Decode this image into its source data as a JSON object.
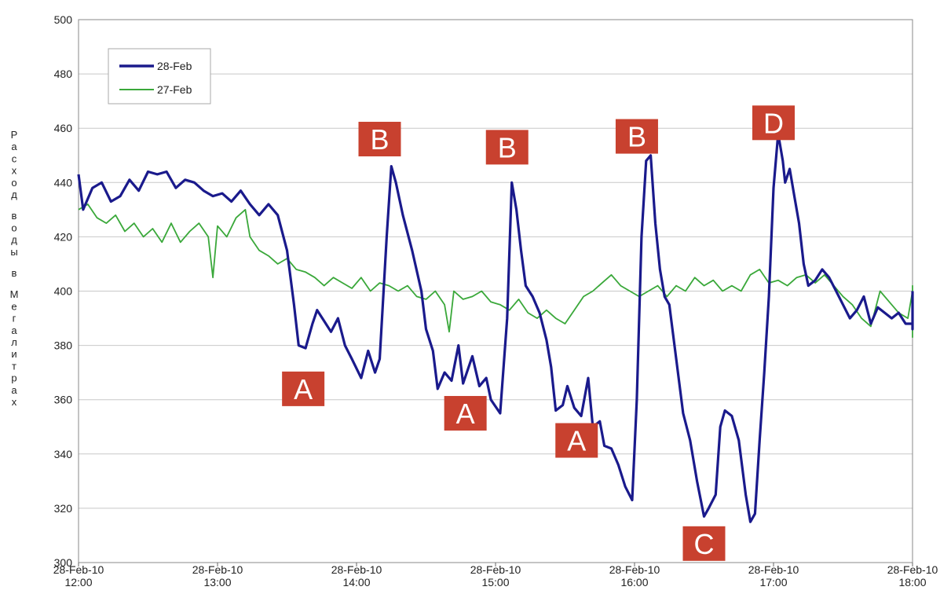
{
  "chart_data": {
    "type": "line",
    "ylabel": "Расход воды в Мегалитрах",
    "ylim": [
      300,
      500
    ],
    "yticks": [
      300,
      320,
      340,
      360,
      380,
      400,
      420,
      440,
      460,
      480,
      500
    ],
    "xlim": [
      "28-Feb-10 12:00",
      "28-Feb-10 18:00"
    ],
    "xticks": [
      {
        "line1": "28-Feb-10",
        "line2": "12:00"
      },
      {
        "line1": "28-Feb-10",
        "line2": "13:00"
      },
      {
        "line1": "28-Feb-10",
        "line2": "14:00"
      },
      {
        "line1": "28-Feb-10",
        "line2": "15:00"
      },
      {
        "line1": "28-Feb-10",
        "line2": "16:00"
      },
      {
        "line1": "28-Feb-10",
        "line2": "17:00"
      },
      {
        "line1": "28-Feb-10",
        "line2": "18:00"
      }
    ],
    "grid": true,
    "legend": {
      "placement": "top-left"
    },
    "series": [
      {
        "name": "28-Feb",
        "color": "#1a1a8c",
        "points": [
          [
            "12:00",
            443
          ],
          [
            "12:02",
            430
          ],
          [
            "12:06",
            438
          ],
          [
            "12:10",
            440
          ],
          [
            "12:14",
            433
          ],
          [
            "12:18",
            435
          ],
          [
            "12:22",
            441
          ],
          [
            "12:26",
            437
          ],
          [
            "12:30",
            444
          ],
          [
            "12:34",
            443
          ],
          [
            "12:38",
            444
          ],
          [
            "12:42",
            438
          ],
          [
            "12:46",
            441
          ],
          [
            "12:50",
            440
          ],
          [
            "12:54",
            437
          ],
          [
            "12:58",
            435
          ],
          [
            "13:02",
            436
          ],
          [
            "13:06",
            433
          ],
          [
            "13:10",
            437
          ],
          [
            "13:14",
            432
          ],
          [
            "13:18",
            428
          ],
          [
            "13:22",
            432
          ],
          [
            "13:26",
            428
          ],
          [
            "13:30",
            415
          ],
          [
            "13:33",
            395
          ],
          [
            "13:35",
            380
          ],
          [
            "13:38",
            379
          ],
          [
            "13:41",
            388
          ],
          [
            "13:43",
            393
          ],
          [
            "13:46",
            389
          ],
          [
            "13:49",
            385
          ],
          [
            "13:52",
            390
          ],
          [
            "13:55",
            380
          ],
          [
            "13:58",
            375
          ],
          [
            "14:02",
            368
          ],
          [
            "14:05",
            378
          ],
          [
            "14:08",
            370
          ],
          [
            "14:10",
            375
          ],
          [
            "14:13",
            420
          ],
          [
            "14:15",
            446
          ],
          [
            "14:17",
            440
          ],
          [
            "14:20",
            428
          ],
          [
            "14:24",
            415
          ],
          [
            "14:28",
            400
          ],
          [
            "14:30",
            386
          ],
          [
            "14:33",
            378
          ],
          [
            "14:35",
            364
          ],
          [
            "14:38",
            370
          ],
          [
            "14:41",
            367
          ],
          [
            "14:44",
            380
          ],
          [
            "14:46",
            366
          ],
          [
            "14:50",
            376
          ],
          [
            "14:53",
            365
          ],
          [
            "14:56",
            368
          ],
          [
            "14:58",
            360
          ],
          [
            "15:02",
            355
          ],
          [
            "15:05",
            390
          ],
          [
            "15:07",
            440
          ],
          [
            "15:09",
            430
          ],
          [
            "15:11",
            415
          ],
          [
            "15:13",
            402
          ],
          [
            "15:16",
            398
          ],
          [
            "15:19",
            392
          ],
          [
            "15:22",
            382
          ],
          [
            "15:24",
            372
          ],
          [
            "15:26",
            356
          ],
          [
            "15:29",
            358
          ],
          [
            "15:31",
            365
          ],
          [
            "15:34",
            357
          ],
          [
            "15:37",
            354
          ],
          [
            "15:40",
            368
          ],
          [
            "15:42",
            350
          ],
          [
            "15:45",
            352
          ],
          [
            "15:47",
            343
          ],
          [
            "15:50",
            342
          ],
          [
            "15:53",
            336
          ],
          [
            "15:56",
            328
          ],
          [
            "15:59",
            323
          ],
          [
            "16:01",
            360
          ],
          [
            "16:03",
            420
          ],
          [
            "16:05",
            448
          ],
          [
            "16:07",
            450
          ],
          [
            "16:09",
            425
          ],
          [
            "16:11",
            408
          ],
          [
            "16:13",
            398
          ],
          [
            "16:15",
            395
          ],
          [
            "16:18",
            375
          ],
          [
            "16:21",
            355
          ],
          [
            "16:24",
            345
          ],
          [
            "16:27",
            330
          ],
          [
            "16:30",
            317
          ],
          [
            "16:32",
            320
          ],
          [
            "16:35",
            325
          ],
          [
            "16:37",
            350
          ],
          [
            "16:39",
            356
          ],
          [
            "16:42",
            354
          ],
          [
            "16:45",
            345
          ],
          [
            "16:48",
            325
          ],
          [
            "16:50",
            315
          ],
          [
            "16:52",
            318
          ],
          [
            "16:54",
            345
          ],
          [
            "16:56",
            370
          ],
          [
            "16:58",
            398
          ],
          [
            "17:00",
            438
          ],
          [
            "17:02",
            458
          ],
          [
            "17:04",
            448
          ],
          [
            "17:05",
            440
          ],
          [
            "17:07",
            445
          ],
          [
            "17:09",
            435
          ],
          [
            "17:11",
            425
          ],
          [
            "17:13",
            410
          ],
          [
            "17:15",
            402
          ],
          [
            "17:18",
            404
          ],
          [
            "17:21",
            408
          ],
          [
            "17:24",
            405
          ],
          [
            "17:27",
            400
          ],
          [
            "17:30",
            395
          ],
          [
            "17:33",
            390
          ],
          [
            "17:36",
            393
          ],
          [
            "17:39",
            398
          ],
          [
            "17:42",
            388
          ],
          [
            "17:45",
            394
          ],
          [
            "17:48",
            392
          ],
          [
            "17:51",
            390
          ],
          [
            "17:54",
            392
          ],
          [
            "17:57",
            388
          ],
          [
            "18:00",
            388
          ],
          [
            "18:03",
            392
          ],
          [
            "18:06",
            390
          ],
          [
            "18:09",
            386
          ],
          [
            "18:12",
            392
          ],
          [
            "18:15",
            388
          ],
          [
            "18:18",
            392
          ],
          [
            "18:21",
            388
          ],
          [
            "18:24",
            390
          ],
          [
            "18:27",
            394
          ],
          [
            "18:30",
            398
          ],
          [
            "18:33",
            393
          ],
          [
            "18:36",
            400
          ]
        ]
      },
      {
        "name": "27-Feb",
        "color": "#3aa83a",
        "points": [
          [
            "12:00",
            430
          ],
          [
            "12:04",
            432
          ],
          [
            "12:08",
            427
          ],
          [
            "12:12",
            425
          ],
          [
            "12:16",
            428
          ],
          [
            "12:20",
            422
          ],
          [
            "12:24",
            425
          ],
          [
            "12:28",
            420
          ],
          [
            "12:32",
            423
          ],
          [
            "12:36",
            418
          ],
          [
            "12:40",
            425
          ],
          [
            "12:44",
            418
          ],
          [
            "12:48",
            422
          ],
          [
            "12:52",
            425
          ],
          [
            "12:56",
            420
          ],
          [
            "12:58",
            405
          ],
          [
            "13:00",
            424
          ],
          [
            "13:04",
            420
          ],
          [
            "13:08",
            427
          ],
          [
            "13:12",
            430
          ],
          [
            "13:14",
            420
          ],
          [
            "13:18",
            415
          ],
          [
            "13:22",
            413
          ],
          [
            "13:26",
            410
          ],
          [
            "13:30",
            412
          ],
          [
            "13:34",
            408
          ],
          [
            "13:38",
            407
          ],
          [
            "13:42",
            405
          ],
          [
            "13:46",
            402
          ],
          [
            "13:50",
            405
          ],
          [
            "13:54",
            403
          ],
          [
            "13:58",
            401
          ],
          [
            "14:02",
            405
          ],
          [
            "14:06",
            400
          ],
          [
            "14:10",
            403
          ],
          [
            "14:14",
            402
          ],
          [
            "14:18",
            400
          ],
          [
            "14:22",
            402
          ],
          [
            "14:26",
            398
          ],
          [
            "14:30",
            397
          ],
          [
            "14:34",
            400
          ],
          [
            "14:38",
            395
          ],
          [
            "14:40",
            385
          ],
          [
            "14:42",
            400
          ],
          [
            "14:46",
            397
          ],
          [
            "14:50",
            398
          ],
          [
            "14:54",
            400
          ],
          [
            "14:58",
            396
          ],
          [
            "15:02",
            395
          ],
          [
            "15:06",
            393
          ],
          [
            "15:10",
            397
          ],
          [
            "15:14",
            392
          ],
          [
            "15:18",
            390
          ],
          [
            "15:22",
            393
          ],
          [
            "15:26",
            390
          ],
          [
            "15:30",
            388
          ],
          [
            "15:34",
            393
          ],
          [
            "15:38",
            398
          ],
          [
            "15:42",
            400
          ],
          [
            "15:46",
            403
          ],
          [
            "15:50",
            406
          ],
          [
            "15:54",
            402
          ],
          [
            "15:58",
            400
          ],
          [
            "16:02",
            398
          ],
          [
            "16:06",
            400
          ],
          [
            "16:10",
            402
          ],
          [
            "16:14",
            398
          ],
          [
            "16:18",
            402
          ],
          [
            "16:22",
            400
          ],
          [
            "16:26",
            405
          ],
          [
            "16:30",
            402
          ],
          [
            "16:34",
            404
          ],
          [
            "16:38",
            400
          ],
          [
            "16:42",
            402
          ],
          [
            "16:46",
            400
          ],
          [
            "16:50",
            406
          ],
          [
            "16:54",
            408
          ],
          [
            "16:58",
            403
          ],
          [
            "17:02",
            404
          ],
          [
            "17:06",
            402
          ],
          [
            "17:10",
            405
          ],
          [
            "17:14",
            406
          ],
          [
            "17:18",
            403
          ],
          [
            "17:22",
            406
          ],
          [
            "17:26",
            402
          ],
          [
            "17:30",
            398
          ],
          [
            "17:34",
            395
          ],
          [
            "17:38",
            390
          ],
          [
            "17:42",
            387
          ],
          [
            "17:46",
            400
          ],
          [
            "17:50",
            396
          ],
          [
            "17:54",
            392
          ],
          [
            "17:58",
            390
          ],
          [
            "18:02",
            400
          ],
          [
            "18:06",
            402
          ],
          [
            "18:10",
            398
          ],
          [
            "18:14",
            395
          ],
          [
            "18:18",
            390
          ],
          [
            "18:22",
            385
          ],
          [
            "18:26",
            383
          ],
          [
            "18:30",
            388
          ],
          [
            "18:34",
            390
          ],
          [
            "18:36",
            388
          ]
        ]
      }
    ],
    "annotations": [
      {
        "label": "A",
        "x": "13:37",
        "y": 364
      },
      {
        "label": "B",
        "x": "14:10",
        "y": 456
      },
      {
        "label": "A",
        "x": "14:47",
        "y": 355
      },
      {
        "label": "B",
        "x": "15:05",
        "y": 453
      },
      {
        "label": "A",
        "x": "15:35",
        "y": 345
      },
      {
        "label": "B",
        "x": "16:01",
        "y": 457
      },
      {
        "label": "C",
        "x": "16:30",
        "y": 307
      },
      {
        "label": "D",
        "x": "17:00",
        "y": 462
      }
    ]
  }
}
